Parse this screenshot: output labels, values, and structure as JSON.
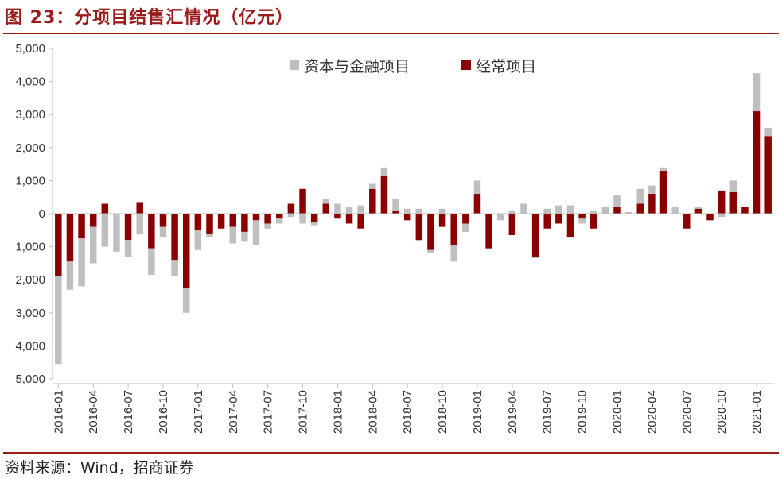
{
  "figure": {
    "title": "图 23：分项目结售汇情况（亿元）",
    "source": "资料来源：Wind，招商证券"
  },
  "colors": {
    "capital_financial": "#bfbfbf",
    "current_account": "#8b0000",
    "accent": "#9b1b1b"
  },
  "chart_data": {
    "type": "bar",
    "stacked": true,
    "title": "分项目结售汇情况（亿元）",
    "xlabel": "",
    "ylabel": "",
    "ylim": [
      -5000,
      5000
    ],
    "y_ticks": [
      "5,000",
      "4,000",
      "3,000",
      "2,000",
      "1,000",
      "0",
      "1,000",
      "2,000",
      "3,000",
      "4,000",
      "5,000"
    ],
    "y_tick_values": [
      5000,
      4000,
      3000,
      2000,
      1000,
      0,
      -1000,
      -2000,
      -3000,
      -4000,
      -5000
    ],
    "x_tick_labels": [
      "2016-01",
      "2016-04",
      "2016-07",
      "2016-10",
      "2017-01",
      "2017-04",
      "2017-07",
      "2017-10",
      "2018-01",
      "2018-04",
      "2018-07",
      "2018-10",
      "2019-01",
      "2019-04",
      "2019-07",
      "2019-10",
      "2020-01",
      "2020-04",
      "2020-07",
      "2020-10",
      "2021-01"
    ],
    "grid": false,
    "legend_position": "top-center",
    "categories": [
      "2016-01",
      "2016-02",
      "2016-03",
      "2016-04",
      "2016-05",
      "2016-06",
      "2016-07",
      "2016-08",
      "2016-09",
      "2016-10",
      "2016-11",
      "2016-12",
      "2017-01",
      "2017-02",
      "2017-03",
      "2017-04",
      "2017-05",
      "2017-06",
      "2017-07",
      "2017-08",
      "2017-09",
      "2017-10",
      "2017-11",
      "2017-12",
      "2018-01",
      "2018-02",
      "2018-03",
      "2018-04",
      "2018-05",
      "2018-06",
      "2018-07",
      "2018-08",
      "2018-09",
      "2018-10",
      "2018-11",
      "2018-12",
      "2019-01",
      "2019-02",
      "2019-03",
      "2019-04",
      "2019-05",
      "2019-06",
      "2019-07",
      "2019-08",
      "2019-09",
      "2019-10",
      "2019-11",
      "2019-12",
      "2020-01",
      "2020-02",
      "2020-03",
      "2020-04",
      "2020-05",
      "2020-06",
      "2020-07",
      "2020-08",
      "2020-09",
      "2020-10",
      "2020-11",
      "2020-12",
      "2021-01",
      "2021-02"
    ],
    "series": [
      {
        "name": "经常项目",
        "color": "#8b0000",
        "values": [
          -1900,
          -1450,
          -750,
          -400,
          300,
          0,
          -800,
          350,
          -1050,
          -400,
          -1400,
          -2250,
          -500,
          -600,
          -450,
          -400,
          -550,
          -200,
          -300,
          -150,
          300,
          750,
          -250,
          300,
          -150,
          -300,
          -450,
          750,
          1150,
          100,
          -200,
          -800,
          -1100,
          -400,
          -950,
          -300,
          600,
          -1050,
          0,
          -650,
          0,
          -1300,
          -450,
          -300,
          -700,
          -150,
          -450,
          0,
          200,
          0,
          300,
          600,
          1300,
          0,
          -450,
          150,
          -200,
          700,
          650,
          200,
          3100,
          2350
        ]
      },
      {
        "name": "资本与金融项目",
        "color": "#bfbfbf",
        "values": [
          -2650,
          -850,
          -1450,
          -1100,
          -1000,
          -1150,
          -500,
          -600,
          -800,
          -300,
          -500,
          -750,
          -600,
          -100,
          0,
          -500,
          -300,
          -750,
          -150,
          -150,
          -100,
          -300,
          -100,
          150,
          300,
          200,
          250,
          150,
          250,
          350,
          150,
          150,
          -100,
          150,
          -500,
          -250,
          400,
          0,
          -200,
          100,
          300,
          -50,
          150,
          250,
          250,
          -150,
          100,
          200,
          350,
          50,
          450,
          250,
          100,
          200,
          0,
          50,
          0,
          -100,
          350,
          0,
          1150,
          250
        ]
      }
    ]
  },
  "legend": [
    {
      "label": "资本与金融项目",
      "color": "#bfbfbf"
    },
    {
      "label": "经常项目",
      "color": "#8b0000"
    }
  ]
}
